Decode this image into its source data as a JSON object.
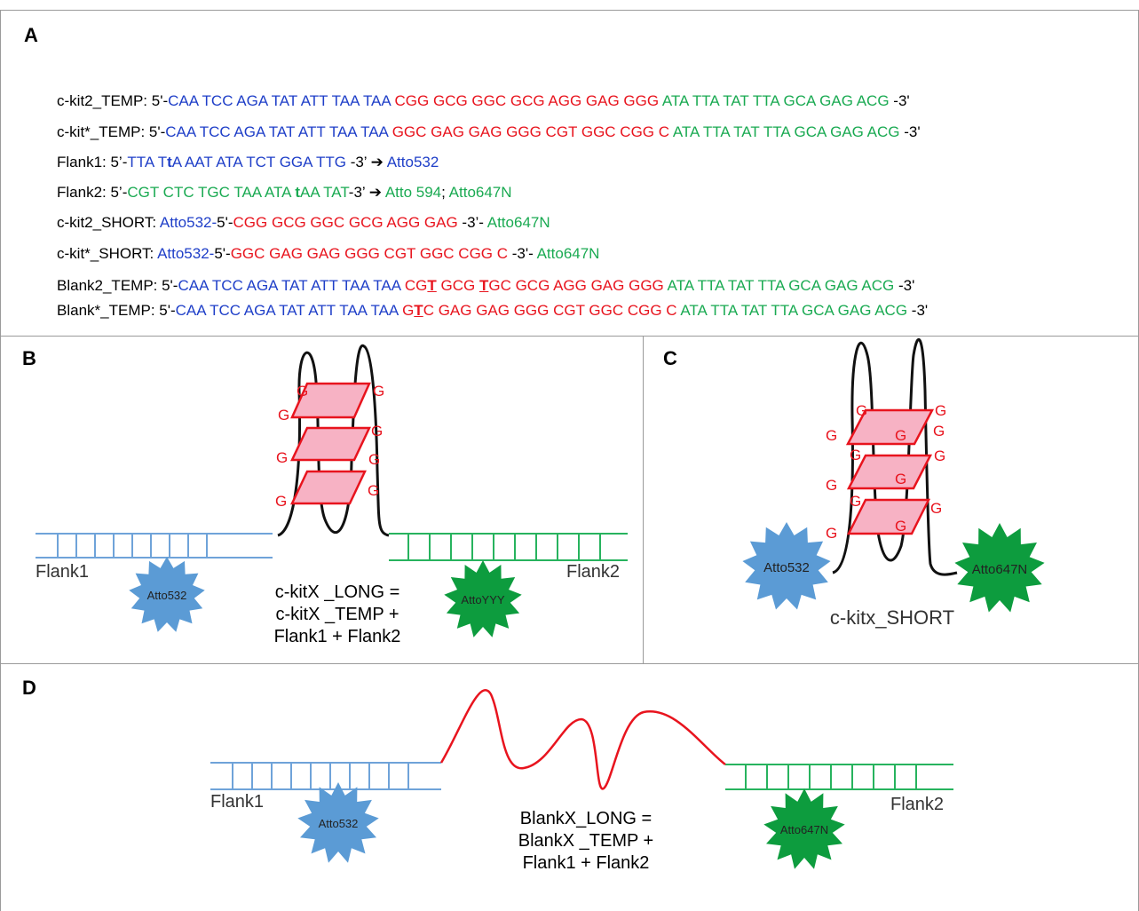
{
  "panels": {
    "a": "A",
    "b": "B",
    "c": "C",
    "d": "D"
  },
  "panel_a": {
    "rows": [
      [
        {
          "c": "k",
          "t": "c-kit2_TEMP: 5'-"
        },
        {
          "c": "b",
          "t": "CAA TCC AGA TAT ATT TAA TAA "
        },
        {
          "c": "r",
          "t": "CGG GCG GGC GCG AGG GAG GGG "
        },
        {
          "c": "g",
          "t": "ATA TTA TAT TTA GCA GAG ACG "
        },
        {
          "c": "k",
          "t": "-3'"
        }
      ],
      [
        {
          "c": "k",
          "t": "c-kit*_TEMP: 5'-"
        },
        {
          "c": "b",
          "t": "CAA TCC AGA TAT ATT TAA TAA "
        },
        {
          "c": "r",
          "t": "GGC GAG GAG GGG CGT GGC CGG C "
        },
        {
          "c": "g",
          "t": "ATA TTA TAT TTA GCA GAG ACG "
        },
        {
          "c": "k",
          "t": "-3'"
        }
      ],
      [
        {
          "c": "k",
          "t": "Flank1: 5’-"
        },
        {
          "c": "b",
          "t": "TTA T"
        },
        {
          "c": "b bold",
          "t": "t"
        },
        {
          "c": "b",
          "t": "A AAT ATA TCT GGA TTG "
        },
        {
          "c": "k",
          "t": "-3’ ➔ "
        },
        {
          "c": "b",
          "t": "Atto532"
        }
      ],
      [
        {
          "c": "k",
          "t": "Flank2: 5’-"
        },
        {
          "c": "g",
          "t": "CGT CTC TGC TAA ATA "
        },
        {
          "c": "g bold",
          "t": "t"
        },
        {
          "c": "g",
          "t": "AA TAT"
        },
        {
          "c": "k",
          "t": "-3’ ➔ "
        },
        {
          "c": "g",
          "t": " Atto 594"
        },
        {
          "c": "k",
          "t": "; "
        },
        {
          "c": "g",
          "t": "Atto647N"
        }
      ],
      [
        {
          "c": "k",
          "t": "c-kit2_SHORT: "
        },
        {
          "c": "b",
          "t": "Atto532-"
        },
        {
          "c": "k",
          "t": "5'-"
        },
        {
          "c": "r",
          "t": "CGG GCG GGC GCG AGG GAG "
        },
        {
          "c": "k",
          "t": "-3’- "
        },
        {
          "c": "g",
          "t": "Atto647N"
        }
      ],
      [
        {
          "c": "k",
          "t": "c-kit*_SHORT: "
        },
        {
          "c": "b",
          "t": "Atto532-"
        },
        {
          "c": "k",
          "t": "5'-"
        },
        {
          "c": "r",
          "t": "GGC GAG GAG GGG CGT GGC CGG C "
        },
        {
          "c": "k",
          "t": "-3'- "
        },
        {
          "c": "g",
          "t": "Atto647N"
        }
      ],
      [
        {
          "c": "k",
          "t": "Blank2_TEMP: 5'-"
        },
        {
          "c": "b",
          "t": "CAA TCC AGA TAT ATT TAA TAA "
        },
        {
          "c": "r",
          "t": "CG"
        },
        {
          "c": "r bold u",
          "t": "T"
        },
        {
          "c": "r",
          "t": " GCG "
        },
        {
          "c": "r bold u",
          "t": "T"
        },
        {
          "c": "r",
          "t": "GC GCG AGG GAG GGG "
        },
        {
          "c": "g",
          "t": "ATA TTA TAT TTA GCA GAG ACG "
        },
        {
          "c": "k",
          "t": "-3'"
        }
      ],
      [
        {
          "c": "k",
          "t": "Blank*_TEMP: 5'-"
        },
        {
          "c": "b",
          "t": "CAA TCC AGA TAT ATT TAA TAA "
        },
        {
          "c": "r",
          "t": "G"
        },
        {
          "c": "r bold u",
          "t": "T"
        },
        {
          "c": "r",
          "t": "C GAG GAG GGG CGT GGC CGG C "
        },
        {
          "c": "g",
          "t": "ATA TTA TAT TTA GCA GAG ACG "
        },
        {
          "c": "k",
          "t": "-3'"
        }
      ]
    ]
  },
  "panel_b": {
    "flank1": "Flank1",
    "flank2": "Flank2",
    "dye_left": "Atto532",
    "dye_right": "AttoYYY",
    "eq_line1": "c-kitX _LONG =",
    "eq_line2": "c-kitX _TEMP +",
    "eq_line3": "Flank1 + Flank2",
    "g": "G"
  },
  "panel_c": {
    "dye_left": "Atto532",
    "dye_right": "Atto647N",
    "caption": "c-kitx_SHORT",
    "g": "G"
  },
  "panel_d": {
    "flank1": "Flank1",
    "flank2": "Flank2",
    "dye_left": "Atto532",
    "dye_right": "Atto647N",
    "eq_line1": "BlankX_LONG =",
    "eq_line2": "BlankX _TEMP +",
    "eq_line3": "Flank1 + Flank2"
  },
  "colors": {
    "blue_text": "#1f3fc8",
    "red": "#e8141e",
    "green_text": "#1aaa52",
    "duplex_blue": "#6fa3d9",
    "duplex_green": "#27b35e",
    "star_blue": "#5b9bd5",
    "star_green": "#0d9c3e",
    "quartet_fill": "#f7b2c4"
  }
}
